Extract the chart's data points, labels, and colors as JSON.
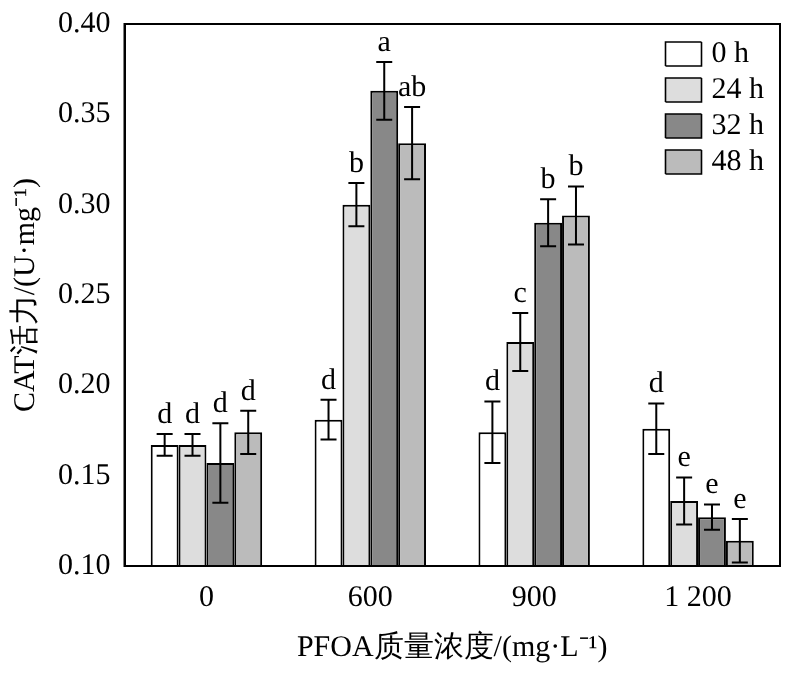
{
  "chart_data": {
    "type": "bar",
    "xlabel": "PFOA质量浓度/(mg·L⁻¹)",
    "ylabel": "CAT活力/(U·mg⁻¹)",
    "categories": [
      "0",
      "600",
      "900",
      "1 200"
    ],
    "series": [
      {
        "name": "0 h",
        "color": "#ffffff",
        "values": [
          0.167,
          0.181,
          0.174,
          0.176
        ],
        "errors": [
          0.006,
          0.011,
          0.017,
          0.014
        ],
        "value_labels": [
          "d",
          "d",
          "d",
          "d"
        ]
      },
      {
        "name": "24 h",
        "color": "#dddddd",
        "values": [
          0.167,
          0.3,
          0.224,
          0.136
        ],
        "errors": [
          0.006,
          0.012,
          0.016,
          0.013
        ],
        "value_labels": [
          "d",
          "b",
          "c",
          "e"
        ]
      },
      {
        "name": "32 h",
        "color": "#888888",
        "values": [
          0.157,
          0.363,
          0.29,
          0.127
        ],
        "errors": [
          0.022,
          0.016,
          0.013,
          0.007
        ],
        "value_labels": [
          "d",
          "a",
          "b",
          "e"
        ]
      },
      {
        "name": "48 h",
        "color": "#bbbbbb",
        "values": [
          0.174,
          0.334,
          0.294,
          0.114
        ],
        "errors": [
          0.012,
          0.02,
          0.016,
          0.012
        ],
        "value_labels": [
          "d",
          "ab",
          "b",
          "e"
        ]
      }
    ],
    "ylim": [
      0.1,
      0.4
    ],
    "yticks": [
      {
        "value": 0.1,
        "label": "0.10"
      },
      {
        "value": 0.15,
        "label": "0.15"
      },
      {
        "value": 0.2,
        "label": "0.20"
      },
      {
        "value": 0.25,
        "label": "0.25"
      },
      {
        "value": 0.3,
        "label": "0.30"
      },
      {
        "value": 0.35,
        "label": "0.35"
      },
      {
        "value": 0.4,
        "label": "0.40"
      }
    ],
    "grid": false,
    "legend": "top right"
  }
}
